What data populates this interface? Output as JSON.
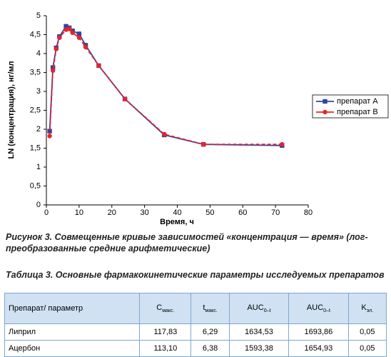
{
  "chart_data": {
    "type": "line",
    "x_label": "Время, ч",
    "y_label": "LN (концентрация), нг/мл",
    "x": [
      1,
      2,
      3,
      4,
      6,
      7,
      8,
      10,
      12,
      16,
      24,
      36,
      48,
      72
    ],
    "series": [
      {
        "name": "препарат А",
        "color": "#33449a",
        "marker": "square",
        "values": [
          1.95,
          3.63,
          4.15,
          4.45,
          4.72,
          4.68,
          4.6,
          4.52,
          4.22,
          3.68,
          2.8,
          1.85,
          1.6,
          1.57
        ]
      },
      {
        "name": "препарат В",
        "color": "#e8242a",
        "marker": "circle",
        "values": [
          1.82,
          3.55,
          4.12,
          4.42,
          4.63,
          4.65,
          4.55,
          4.42,
          4.17,
          3.68,
          2.8,
          1.87,
          1.6,
          1.6
        ]
      }
    ],
    "xlim": [
      0,
      80
    ],
    "xticks": [
      0,
      10,
      20,
      30,
      40,
      50,
      60,
      70,
      80
    ],
    "ylim": [
      0,
      5
    ],
    "yticks": [
      0,
      {
        "value": 0.5,
        "label": "0,5"
      },
      1,
      {
        "value": 1.5,
        "label": "1,5"
      },
      2,
      {
        "value": 2.5,
        "label": "2,5"
      },
      3,
      {
        "value": 3.5,
        "label": "3,5"
      },
      4,
      {
        "value": 4.5,
        "label": "4,5"
      },
      5
    ],
    "grid": false,
    "legend": "right"
  },
  "figure_caption": "Рисунок 3. Совмещенные кривые зависимостей «концентрация — время» (лог-преобразованные средние арифметические)",
  "table": {
    "caption": "Таблица 3. Основные фармакокинетические параметры исследуемых препаратов",
    "header": [
      {
        "main": "Препарат/ параметр"
      },
      {
        "main": "C",
        "sub": "макс."
      },
      {
        "main": "t",
        "sub": "макс."
      },
      {
        "main": "AUC",
        "sub": "0–t"
      },
      {
        "main": "AUC",
        "sub": "0–t"
      },
      {
        "main": "K",
        "sub": "эл."
      }
    ],
    "rows": [
      [
        "Липрил",
        "117,83",
        "6,29",
        "1634,53",
        "1693,86",
        "0,05"
      ],
      [
        "Ацербон",
        "113,10",
        "6,38",
        "1593,38",
        "1654,93",
        "0,05"
      ]
    ]
  }
}
